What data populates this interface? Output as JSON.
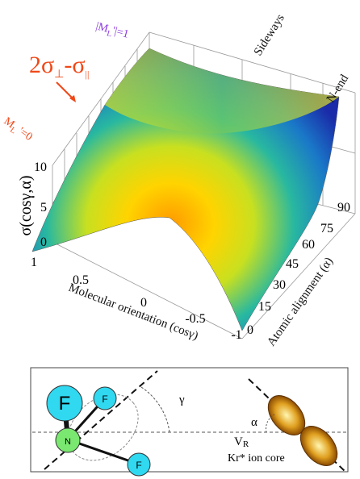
{
  "plot": {
    "mode_top": {
      "pre": "|M",
      "sub": "L",
      "post": "'|=1"
    },
    "sideways": "Sideways",
    "n_end": "N-end",
    "combo": {
      "a": "2σ",
      "a_sub": "⊥",
      "b": "-σ",
      "b_sub": "||"
    },
    "mode_zero": {
      "pre": "M",
      "sub": "L",
      "post": " '=0"
    },
    "z_axis": {
      "label": "σ(cosγ,α)",
      "ticks": [
        "10",
        "5",
        "0"
      ]
    },
    "x_axis": {
      "label": "Molecular orientation (cosγ)",
      "ticks": [
        "1",
        "0.5",
        "0",
        "-0.5",
        "-1"
      ]
    },
    "a_axis": {
      "label": "Atomic alignment (α)",
      "ticks": [
        "90",
        "75",
        "60",
        "45",
        "30",
        "15",
        "0"
      ]
    }
  },
  "diagram": {
    "f_big": "F",
    "f_top": "F",
    "f_bottom": "F",
    "n": "N",
    "gamma": "γ",
    "alpha": "α",
    "v": "V",
    "v_sub": "R",
    "core": "Kr* ion core"
  }
}
